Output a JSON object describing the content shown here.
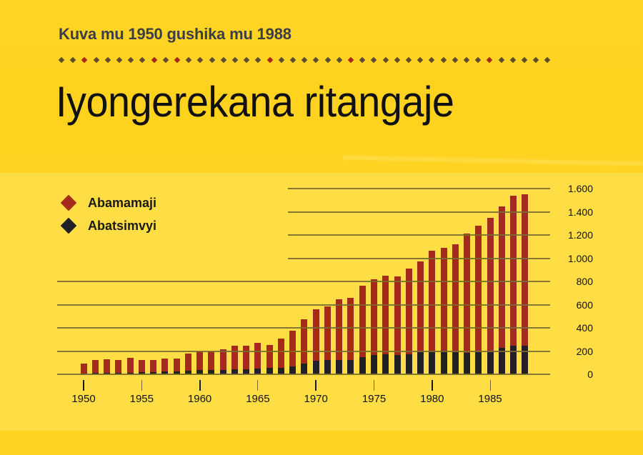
{
  "header": {
    "subtitle": "Kuva mu 1950 gushika mu 1988",
    "title": "Iyongerekana ritangaje",
    "divider": {
      "count": 43,
      "start_x": 86,
      "spacing": 16.2,
      "red_indices": [
        2,
        8,
        10,
        18,
        25,
        37
      ],
      "color": "#5E4B30",
      "accent_color": "#A8261B"
    }
  },
  "legend": {
    "items": [
      {
        "label": "Abamamaji",
        "color": "#A52A1C"
      },
      {
        "label": "Abatsimvyi",
        "color": "#222027"
      }
    ]
  },
  "colors": {
    "background_top": "#FFD21E",
    "background_chart": "#FFDE45",
    "grid": "#7A6B2C",
    "text_subtitle": "#3B3D49"
  },
  "chart_data": {
    "type": "bar",
    "stacked": true,
    "title": "Iyongerekana ritangaje",
    "subtitle": "Kuva mu 1950 gushika mu 1988",
    "xlabel": "",
    "ylabel": "",
    "ylim": [
      0,
      1600
    ],
    "yticks": [
      0,
      200,
      400,
      600,
      800,
      1000,
      1200,
      1400,
      1600
    ],
    "ytick_labels": [
      "0",
      "200",
      "400",
      "600",
      "800",
      "1.000",
      "1.200",
      "1.400",
      "1.600"
    ],
    "xtick_labels": [
      "1950",
      "1955",
      "1960",
      "1965",
      "1970",
      "1975",
      "1980",
      "1985"
    ],
    "grid": true,
    "legend_position": "top-left",
    "categories": [
      1950,
      1951,
      1952,
      1953,
      1954,
      1955,
      1956,
      1957,
      1958,
      1959,
      1960,
      1961,
      1962,
      1963,
      1964,
      1965,
      1966,
      1967,
      1968,
      1969,
      1970,
      1971,
      1972,
      1973,
      1974,
      1975,
      1976,
      1977,
      1978,
      1979,
      1980,
      1981,
      1982,
      1983,
      1984,
      1985,
      1986,
      1987,
      1988
    ],
    "series": [
      {
        "name": "Abatsimvyi",
        "color": "#222027",
        "values": [
          8,
          12,
          14,
          12,
          14,
          20,
          20,
          25,
          25,
          29,
          37,
          37,
          37,
          42,
          45,
          49,
          54,
          57,
          70,
          93,
          117,
          125,
          125,
          125,
          146,
          169,
          171,
          167,
          173,
          193,
          202,
          202,
          190,
          185,
          199,
          199,
          226,
          245,
          245
        ]
      },
      {
        "name": "Abamamaji",
        "color": "#A52A1C",
        "values": [
          83,
          113,
          117,
          113,
          128,
          105,
          105,
          109,
          109,
          152,
          161,
          161,
          181,
          203,
          200,
          223,
          201,
          250,
          304,
          380,
          445,
          460,
          522,
          534,
          618,
          652,
          677,
          679,
          741,
          782,
          862,
          889,
          932,
          1029,
          1081,
          1151,
          1220,
          1294,
          1306
        ]
      }
    ],
    "totals": [
      91,
      125,
      131,
      125,
      142,
      125,
      125,
      134,
      134,
      181,
      198,
      198,
      218,
      245,
      245,
      272,
      255,
      307,
      374,
      473,
      562,
      585,
      647,
      659,
      764,
      821,
      848,
      846,
      914,
      975,
      1064,
      1091,
      1122,
      1214,
      1280,
      1350,
      1446,
      1539,
      1551
    ]
  }
}
